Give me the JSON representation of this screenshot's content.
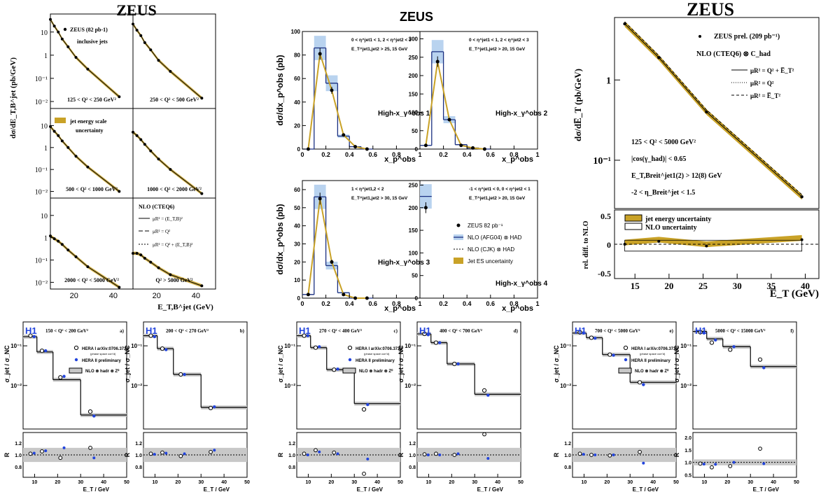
{
  "chart_data": [
    {
      "id": "zeus1",
      "type": "line",
      "title": "ZEUS",
      "experiment": "ZEUS",
      "xlabel": "E_T,B^jet (GeV)",
      "ylabel": "dσ/dE_T,B^jet (pb/GeV)",
      "legend": [
        "ZEUS (82 pb-1)",
        "inclusive jets",
        "jet energy scale",
        "uncertainty",
        "NLO (CTEQ6)",
        "μR² = (E_T,B)²",
        "μR² = Q²",
        "μR² = Q² + (E_T,B)²"
      ],
      "yscale": "log",
      "ylim": [
        0.005,
        60
      ],
      "xlim": [
        8,
        50
      ],
      "xticks": [
        20,
        40
      ],
      "yticks": [
        "10",
        "1",
        "10⁻¹",
        "10⁻²"
      ],
      "panels": [
        {
          "label": "125 < Q² < 250 GeV²",
          "x": [
            8,
            10,
            12,
            14,
            17,
            21,
            27,
            43
          ],
          "y": [
            35,
            18,
            10,
            5,
            2.3,
            0.8,
            0.25,
            0.016
          ]
        },
        {
          "label": "250 < Q² < 500 GeV²",
          "x": [
            8,
            10,
            12,
            14,
            17,
            21,
            27,
            43
          ],
          "y": [
            22,
            12,
            7,
            3.5,
            1.7,
            0.6,
            0.2,
            0.014
          ]
        },
        {
          "label": "500 < Q² < 1000 GeV²",
          "x": [
            8,
            10,
            12,
            14,
            17,
            21,
            27,
            43
          ],
          "y": [
            9,
            5.5,
            3.5,
            2,
            1,
            0.4,
            0.13,
            0.01
          ]
        },
        {
          "label": "1000 < Q² < 2000 GeV²",
          "x": [
            8,
            10,
            12,
            14,
            17,
            21,
            27,
            43
          ],
          "y": [
            5,
            3.5,
            2.3,
            1.4,
            0.7,
            0.3,
            0.1,
            0.008
          ]
        },
        {
          "label": "2000 < Q² < 5000 GeV²",
          "x": [
            8,
            10,
            12,
            14,
            17,
            21,
            27,
            43
          ],
          "y": [
            1.2,
            0.9,
            0.7,
            0.5,
            0.28,
            0.14,
            0.05,
            0.006
          ]
        },
        {
          "label": "Q² > 5000 GeV²",
          "x": [
            8,
            10,
            12,
            14,
            17,
            21,
            27,
            43
          ],
          "y": [
            0.2,
            0.2,
            0.17,
            0.12,
            0.08,
            0.045,
            0.022,
            0.007
          ]
        }
      ]
    },
    {
      "id": "zeus2",
      "type": "bar",
      "title": "ZEUS",
      "experiment": "ZEUS",
      "xlabel": "x_p^obs",
      "ylabel": "dσ/dx_p^obs (pb)",
      "legend": [
        "ZEUS 82 pb⁻¹",
        "NLO (AFG04) ⊗ HAD",
        "NLO (CJK) ⊗ HAD",
        "Jet ES uncertainty"
      ],
      "xlim": [
        0,
        1
      ],
      "xticks": [
        0,
        0.2,
        0.4,
        0.6,
        0.8,
        1
      ],
      "bin_edges": [
        0,
        0.1,
        0.2,
        0.3,
        0.4,
        0.5,
        0.6
      ],
      "panels": [
        {
          "label": "High-x_γ^obs 1",
          "cuts": [
            "0 < η^jet1 < 1, 2 < η^jet2 < 3",
            "E_T^jet1,jet2 > 25, 15 GeV"
          ],
          "ylim": [
            0,
            100
          ],
          "yticks": [
            0,
            20,
            40,
            60,
            80,
            100
          ],
          "x": [
            0.05,
            0.15,
            0.25,
            0.35,
            0.45,
            0.55
          ],
          "y": [
            0,
            81,
            50,
            12,
            2,
            0
          ],
          "nlo": [
            0,
            86,
            56,
            11,
            2,
            0
          ]
        },
        {
          "label": "High-x_γ^obs 2",
          "cuts": [
            "0 < η^jet1 < 1, 2 < η^jet2 < 3",
            "E_T^jet1,jet2 > 20, 15 GeV"
          ],
          "ylim": [
            0,
            320
          ],
          "yticks": [
            0,
            50,
            100,
            150,
            200,
            250,
            300
          ],
          "x": [
            0.05,
            0.15,
            0.25,
            0.35,
            0.45,
            0.55
          ],
          "y": [
            10,
            238,
            80,
            10,
            3,
            0
          ],
          "nlo": [
            10,
            265,
            80,
            12,
            3,
            0
          ]
        },
        {
          "label": "High-x_γ^obs 3",
          "cuts": [
            "1 < η^jet1,2 < 2",
            "E_T^jet1,jet2 > 30, 15 GeV"
          ],
          "ylim": [
            0,
            65
          ],
          "yticks": [
            0,
            10,
            20,
            30,
            40,
            50,
            60
          ],
          "x": [
            0.05,
            0.15,
            0.25,
            0.35,
            0.45,
            0.55
          ],
          "y": [
            2,
            55,
            20,
            2,
            0,
            0
          ],
          "nlo": [
            2,
            56,
            18,
            3,
            0,
            0
          ]
        },
        {
          "label": "High-x_γ^obs 4",
          "cuts": [
            "-1 < η^jet1 < 0, 0 < η^jet2 < 1",
            "E_T^jet1,jet2 > 20, 15 GeV"
          ],
          "ylim": [
            0,
            260
          ],
          "yticks": [
            0,
            50,
            100,
            150,
            200,
            250
          ],
          "x": [
            0.05
          ],
          "y": [
            200
          ],
          "nlo": [
            225
          ]
        }
      ]
    },
    {
      "id": "zeus3",
      "type": "line",
      "title": "ZEUS",
      "experiment": "ZEUS",
      "xlabel": "E̅_T (GeV)",
      "ylabel": "dσ/dE̅_T (pb/GeV)",
      "ratio_ylabel": "rel. diff. to NLO",
      "legend": [
        "ZEUS prel. (209 pb⁻¹)",
        "NLO (CTEQ6) ⊗ C_had",
        "μR² = Q² + E̅_T²",
        "μR² = Q²",
        "μR² = E̅_T²",
        "jet energy uncertainty",
        "NLO uncertainty"
      ],
      "cuts": [
        "125 < Q² < 5000 GeV²",
        "|cos(γ_had)| < 0.65",
        "E_T,Breit^jet1(2) > 12(8) GeV",
        "-2 < η_Breit^jet < 1.5"
      ],
      "yscale": "log",
      "ylim": [
        0.025,
        6
      ],
      "xlim": [
        12,
        42
      ],
      "xticks": [
        15,
        20,
        25,
        30,
        35,
        40
      ],
      "yticks": [
        "1",
        "10⁻¹"
      ],
      "ratio_ylim": [
        -0.6,
        0.6
      ],
      "ratio_yticks": [
        "0.5",
        "0",
        "-0.5"
      ],
      "x": [
        13.5,
        18.5,
        25.5,
        39.5
      ],
      "y": [
        5,
        1.9,
        0.4,
        0.035
      ],
      "rel_diff": [
        0,
        0.05,
        -0.03,
        0.08
      ]
    },
    {
      "id": "h1",
      "type": "bar",
      "experiment": "H1",
      "xlabel": "E_T / GeV",
      "ylabel": "σ_jet / σ_NC",
      "ratio_ylabel": "R",
      "legend": [
        "HERA I arXiv:0706.3722",
        "(phase space corr'd)",
        "HERA II preliminary",
        "NLO ⊗ hadr ⊗ Z⁰"
      ],
      "xlim": [
        5,
        50
      ],
      "xticks": [
        10,
        20,
        30,
        40,
        50
      ],
      "ylim": [
        0.0008,
        0.4
      ],
      "yticks": [
        "10⁻¹",
        "10⁻²"
      ],
      "bin_edges": [
        5,
        7,
        11,
        18,
        30,
        50
      ],
      "panels": [
        {
          "label": "150 < Q² < 200 GeV²",
          "tag": "a)",
          "hera1": [
            0.18,
            0.075,
            0.016,
            0.0022
          ],
          "hera2": [
            0.17,
            0.075,
            0.017,
            0.0017
          ],
          "nlo": [
            0.17,
            0.07,
            0.014,
            0.0018
          ],
          "ratio_hera1": [
            1.02,
            1.06,
            0.95,
            1.12
          ],
          "ratio_hera2": [
            1.03,
            1.07,
            1.12,
            0.95
          ],
          "ratio_yticks": [
            "0.8",
            "1.0",
            "1.2"
          ]
        },
        {
          "label": "200 < Q² < 270 GeV²",
          "tag": "b)",
          "hera1": [
            0.18,
            0.085,
            0.019,
            0.0027
          ],
          "hera2": [
            0.17,
            0.08,
            0.019,
            0.0029
          ],
          "nlo": [
            0.18,
            0.085,
            0.019,
            0.0028
          ],
          "ratio_hera1": [
            1.02,
            1.04,
            0.98,
            1.05
          ],
          "ratio_hera2": [
            1.01,
            1.03,
            1.02,
            1.08
          ],
          "ratio_yticks": [
            "0.8",
            "1.0",
            "1.2"
          ]
        },
        {
          "label": "270 < Q² < 400 GeV²",
          "tag": "c)",
          "hera1": [
            0.18,
            0.09,
            0.025,
            0.0025
          ],
          "hera2": [
            0.18,
            0.095,
            0.026,
            0.0033
          ],
          "nlo": [
            0.18,
            0.09,
            0.025,
            0.0035
          ],
          "ratio_hera1": [
            1.02,
            1.08,
            1.04,
            0.68
          ],
          "ratio_hera2": [
            1.0,
            1.05,
            1.02,
            0.93
          ],
          "ratio_yticks": [
            "0.8",
            "1.0",
            "1.2"
          ]
        },
        {
          "label": "400 < Q² < 700 GeV²",
          "tag": "d)",
          "hera1": [
            0.2,
            0.12,
            0.035,
            0.0075
          ],
          "hera2": [
            0.19,
            0.12,
            0.035,
            0.0057
          ],
          "nlo": [
            0.2,
            0.12,
            0.035,
            0.006
          ],
          "ratio_hera1": [
            1.01,
            1.02,
            1.0,
            1.35
          ],
          "ratio_hera2": [
            1.0,
            1.0,
            1.02,
            0.94
          ],
          "ratio_yticks": [
            "0.8",
            "1.0",
            "1.2"
          ]
        },
        {
          "label": "700 < Q² < 5000 GeV²",
          "tag": "e)",
          "hera1": [
            0.22,
            0.16,
            0.06,
            0.012
          ],
          "hera2": [
            0.21,
            0.155,
            0.058,
            0.0105
          ],
          "nlo": [
            0.21,
            0.16,
            0.06,
            0.012
          ],
          "ratio_hera1": [
            1.02,
            1.0,
            0.99,
            1.05
          ],
          "ratio_hera2": [
            1.01,
            1.0,
            1.0,
            0.86
          ],
          "ratio_yticks": [
            "0.8",
            "1.0",
            "1.2"
          ]
        },
        {
          "label": "5000 < Q² < 15000 GeV²",
          "tag": "f)",
          "hera1": [
            0.22,
            0.12,
            0.08,
            0.045
          ],
          "hera2": [
            0.21,
            0.14,
            0.095,
            0.028
          ],
          "nlo": [
            0.23,
            0.15,
            0.095,
            0.03
          ],
          "ratio_hera1": [
            0.95,
            0.8,
            0.85,
            1.55
          ],
          "ratio_hera2": [
            0.93,
            0.92,
            1.0,
            0.95
          ],
          "ratio_yticks": [
            "0.5",
            "1.0",
            "1.5",
            "2.0"
          ]
        }
      ]
    }
  ]
}
